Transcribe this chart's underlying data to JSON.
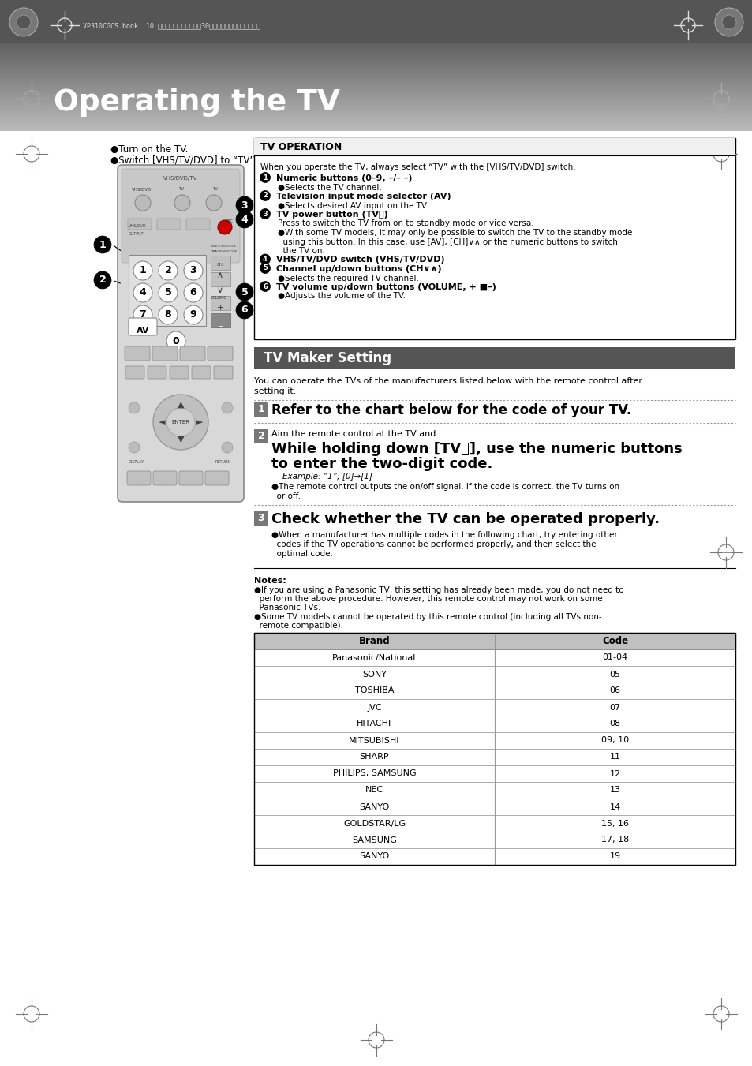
{
  "page_bg": "#ffffff",
  "header_bg": "#555555",
  "header_text": "VP310CGCS.book  10 ページ　２００３年７月30日　水曜日　午後８時２８分",
  "title": "Operating the TV",
  "bullet_intro_1": "●Turn on the TV.",
  "bullet_intro_2": "●Switch [VHS/TV/DVD] to “TV”.",
  "tv_op_title": "TV OPERATION",
  "tv_op_intro": "When you operate the TV, always select “TV” with the [VHS/TV/DVD] switch.",
  "op_items": [
    {
      "n": "1",
      "bold": "Numeric buttons (0–9, –/– –)",
      "plain": ""
    },
    {
      "n": "",
      "bold": "",
      "plain": "●Selects the TV channel."
    },
    {
      "n": "2",
      "bold": "Television input mode selector (AV)",
      "plain": ""
    },
    {
      "n": "",
      "bold": "",
      "plain": "●Selects desired AV input on the TV."
    },
    {
      "n": "3",
      "bold": "TV power button (TV⏻)",
      "plain": ""
    },
    {
      "n": "",
      "bold": "",
      "plain": "Press to switch the TV from on to standby mode or vice versa."
    },
    {
      "n": "",
      "bold": "",
      "plain": "●With some TV models, it may only be possible to switch the TV to the standby mode"
    },
    {
      "n": "",
      "bold": "",
      "plain": "  using this button. In this case, use [AV], [CH]∨∧ or the numeric buttons to switch"
    },
    {
      "n": "",
      "bold": "",
      "plain": "  the TV on."
    },
    {
      "n": "4",
      "bold": "VHS/TV/DVD switch (VHS/TV/DVD)",
      "plain": ""
    },
    {
      "n": "5",
      "bold": "Channel up/down buttons (CH∨∧)",
      "plain": ""
    },
    {
      "n": "",
      "bold": "",
      "plain": "●Selects the required TV channel."
    },
    {
      "n": "6",
      "bold": "TV volume up/down buttons (VOLUME, + ■–)",
      "plain": ""
    },
    {
      "n": "",
      "bold": "",
      "plain": "●Adjusts the volume of the TV."
    }
  ],
  "maker_title": "TV Maker Setting",
  "maker_intro_1": "You can operate the TVs of the manufacturers listed below with the remote control after",
  "maker_intro_2": "setting it.",
  "step1_text": "Refer to the chart below for the code of your TV.",
  "step2_small": "Aim the remote control at the TV and",
  "step2_bold_1": "While holding down [TV⏻], use the numeric buttons",
  "step2_bold_2": "to enter the two-digit code.",
  "step2_example": "Example: “1”; [0]→[1]",
  "step2_bullet": "●The remote control outputs the on/off signal. If the code is correct, the TV turns on",
  "step2_bullet2": "  or off.",
  "step3_text": "Check whether the TV can be operated properly.",
  "step3_bullet1": "●When a manufacturer has multiple codes in the following chart, try entering other",
  "step3_bullet2": "  codes if the TV operations cannot be performed properly, and then select the",
  "step3_bullet3": "  optimal code.",
  "notes_bold": "Notes:",
  "note1_1": "●If you are using a Panasonic TV, this setting has already been made, you do not need to",
  "note1_2": "  perform the above procedure. However, this remote control may not work on some",
  "note1_3": "  Panasonic TVs.",
  "note2_1": "●Some TV models cannot be operated by this remote control (including all TVs non-",
  "note2_2": "  remote compatible).",
  "table_brands": [
    "Panasonic/National",
    "SONY",
    "TOSHIBA",
    "JVC",
    "HITACHI",
    "MITSUBISHI",
    "SHARP",
    "PHILIPS, SAMSUNG",
    "NEC",
    "SANYO",
    "GOLDSTAR/LG",
    "SAMSUNG",
    "SANYO"
  ],
  "table_codes": [
    "01-04",
    "05",
    "06",
    "07",
    "08",
    "09, 10",
    "11",
    "12",
    "13",
    "14",
    "15, 16",
    "17, 18",
    "19"
  ]
}
